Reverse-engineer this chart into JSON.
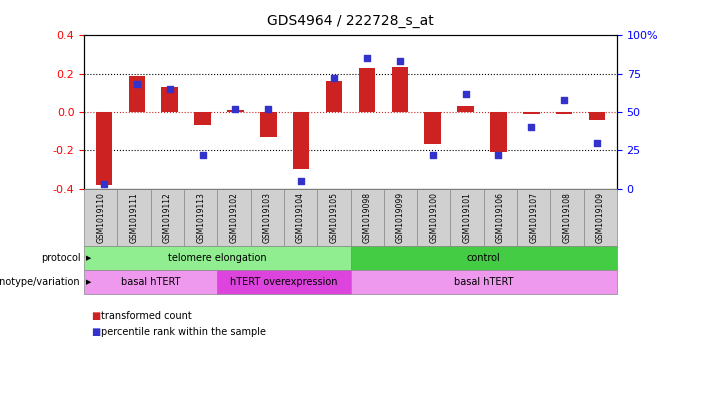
{
  "title": "GDS4964 / 222728_s_at",
  "samples": [
    "GSM1019110",
    "GSM1019111",
    "GSM1019112",
    "GSM1019113",
    "GSM1019102",
    "GSM1019103",
    "GSM1019104",
    "GSM1019105",
    "GSM1019098",
    "GSM1019099",
    "GSM1019100",
    "GSM1019101",
    "GSM1019106",
    "GSM1019107",
    "GSM1019108",
    "GSM1019109"
  ],
  "bar_values": [
    -0.38,
    0.19,
    0.13,
    -0.07,
    0.01,
    -0.13,
    -0.295,
    0.16,
    0.23,
    0.235,
    -0.165,
    0.03,
    -0.21,
    -0.01,
    -0.01,
    -0.04
  ],
  "dot_values": [
    3,
    68,
    65,
    22,
    52,
    52,
    5,
    72,
    85,
    83,
    22,
    62,
    22,
    40,
    58,
    30
  ],
  "ylim_left": [
    -0.4,
    0.4
  ],
  "ylim_right": [
    0,
    100
  ],
  "yticks_left": [
    -0.4,
    -0.2,
    0.0,
    0.2,
    0.4
  ],
  "yticks_right": [
    0,
    25,
    50,
    75,
    100
  ],
  "ytick_labels_right": [
    "0",
    "25",
    "50",
    "75",
    "100%"
  ],
  "bar_color": "#cc2222",
  "dot_color": "#3333cc",
  "protocol_groups": [
    {
      "label": "telomere elongation",
      "start": 0,
      "end": 8,
      "color": "#90ee90"
    },
    {
      "label": "control",
      "start": 8,
      "end": 16,
      "color": "#44cc44"
    }
  ],
  "genotype_groups": [
    {
      "label": "basal hTERT",
      "start": 0,
      "end": 4,
      "color": "#ee99ee"
    },
    {
      "label": "hTERT overexpression",
      "start": 4,
      "end": 8,
      "color": "#dd44dd"
    },
    {
      "label": "basal hTERT",
      "start": 8,
      "end": 16,
      "color": "#ee99ee"
    }
  ],
  "bg_color": "#ffffff"
}
